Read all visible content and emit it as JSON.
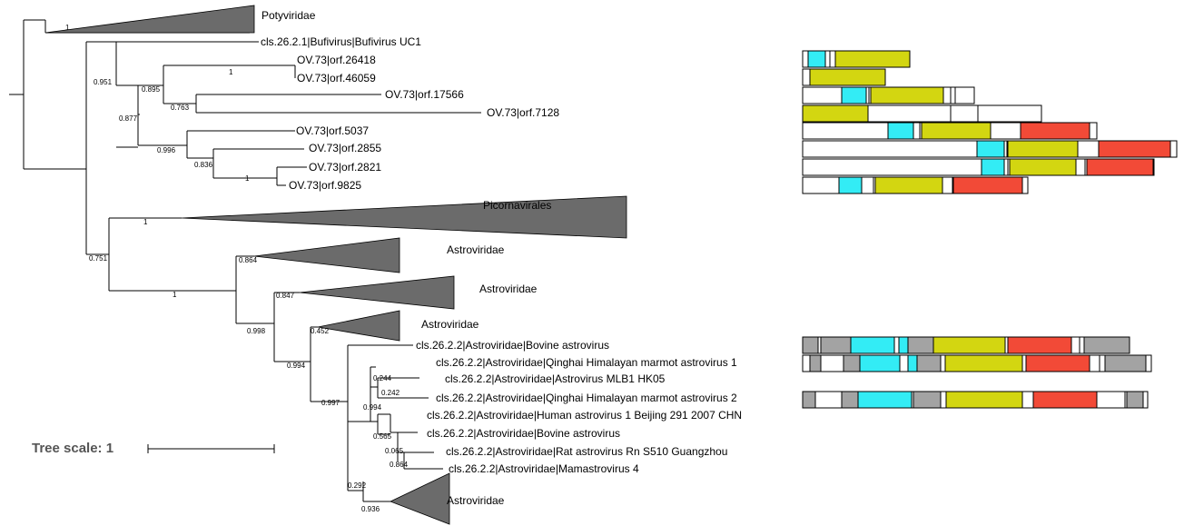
{
  "colors": {
    "clade_fill": "#6b6b6b",
    "domain_cyan": "#33ecf5",
    "domain_olive": "#d3d611",
    "domain_red": "#f24a37",
    "domain_gray": "#a3a3a3",
    "domain_white": "#ffffff"
  },
  "collapsed_clades": [
    {
      "id": "potyviridae",
      "label": "Potyviridae"
    },
    {
      "id": "picornavirales",
      "label": "Picornavirales"
    },
    {
      "id": "astroviridae-1",
      "label": "Astroviridae"
    },
    {
      "id": "astroviridae-2",
      "label": "Astroviridae"
    },
    {
      "id": "astroviridae-3",
      "label": "Astroviridae"
    },
    {
      "id": "astroviridae-4",
      "label": "Astroviridae"
    }
  ],
  "leaves": [
    {
      "id": "bufivirus",
      "label": "cls.26.2.1|Bufivirus|Bufivirus UC1"
    },
    {
      "id": "orf26418",
      "label": "OV.73|orf.26418"
    },
    {
      "id": "orf46059",
      "label": "OV.73|orf.46059"
    },
    {
      "id": "orf17566",
      "label": "OV.73|orf.17566"
    },
    {
      "id": "orf7128",
      "label": "OV.73|orf.7128"
    },
    {
      "id": "orf5037",
      "label": "OV.73|orf.5037"
    },
    {
      "id": "orf2855",
      "label": "OV.73|orf.2855"
    },
    {
      "id": "orf2821",
      "label": "OV.73|orf.2821"
    },
    {
      "id": "orf9825",
      "label": "OV.73|orf.9825"
    },
    {
      "id": "bovine-astro-1",
      "label": "cls.26.2.2|Astroviridae|Bovine astrovirus"
    },
    {
      "id": "qinghai-1",
      "label": "cls.26.2.2|Astroviridae|Qinghai Himalayan marmot astrovirus 1"
    },
    {
      "id": "mlb1",
      "label": "cls.26.2.2|Astroviridae|Astrovirus MLB1 HK05"
    },
    {
      "id": "qinghai-2",
      "label": "cls.26.2.2|Astroviridae|Qinghai Himalayan marmot astrovirus 2"
    },
    {
      "id": "human-astro-1",
      "label": "cls.26.2.2|Astroviridae|Human astrovirus 1 Beijing 291 2007 CHN"
    },
    {
      "id": "bovine-astro-2",
      "label": "cls.26.2.2|Astroviridae|Bovine astrovirus"
    },
    {
      "id": "rat-astro",
      "label": "cls.26.2.2|Astroviridae|Rat astrovirus Rn S510 Guangzhou"
    },
    {
      "id": "mamastro-4",
      "label": "cls.26.2.2|Astroviridae|Mamastrovirus 4"
    }
  ],
  "support_values": [
    {
      "id": "s-poty",
      "value": "1"
    },
    {
      "id": "s-root-a",
      "value": "0.951"
    },
    {
      "id": "s-root-b",
      "value": "0.751"
    },
    {
      "id": "s-orf-a",
      "value": "0.877"
    },
    {
      "id": "s-orf-b",
      "value": "0.895"
    },
    {
      "id": "s-orf-c",
      "value": "1"
    },
    {
      "id": "s-orf-d",
      "value": "0.763"
    },
    {
      "id": "s-orf-e",
      "value": "0.996"
    },
    {
      "id": "s-orf-f",
      "value": "0.836"
    },
    {
      "id": "s-orf-g",
      "value": "1"
    },
    {
      "id": "s-picorna",
      "value": "1"
    },
    {
      "id": "s-astro-main",
      "value": "1"
    },
    {
      "id": "s-astro1",
      "value": "0.864"
    },
    {
      "id": "s-998",
      "value": "0.998"
    },
    {
      "id": "s-astro2",
      "value": "0.847"
    },
    {
      "id": "s-994",
      "value": "0.994"
    },
    {
      "id": "s-astro3",
      "value": "0.452"
    },
    {
      "id": "s-997",
      "value": "0.997"
    },
    {
      "id": "s-292",
      "value": "0.292"
    },
    {
      "id": "s-936",
      "value": "0.936"
    },
    {
      "id": "s-994b",
      "value": "0.994"
    },
    {
      "id": "s-244",
      "value": "0.244"
    },
    {
      "id": "s-242",
      "value": "0.242"
    },
    {
      "id": "s-565",
      "value": "0.565"
    },
    {
      "id": "s-065",
      "value": "0.065"
    },
    {
      "id": "s-864b",
      "value": "0.864"
    }
  ],
  "scale": {
    "label": "Tree scale: 1"
  },
  "domain_tracks": [
    {
      "id": "orf26418",
      "length": 118,
      "segments": [
        [
          "white",
          0,
          6
        ],
        [
          "cyan",
          6,
          25
        ],
        [
          "white",
          25,
          30
        ],
        [
          "olive",
          36,
          118
        ]
      ]
    },
    {
      "id": "orf46059",
      "length": 91,
      "segments": [
        [
          "white",
          0,
          8
        ],
        [
          "olive",
          8,
          91
        ]
      ]
    },
    {
      "id": "orf17566",
      "length": 189,
      "segments": [
        [
          "white",
          0,
          43
        ],
        [
          "cyan",
          43,
          70
        ],
        [
          "white",
          70,
          73
        ],
        [
          "olive",
          75,
          155
        ],
        [
          "white",
          163,
          168
        ]
      ]
    },
    {
      "id": "orf7128",
      "length": 263,
      "segments": [
        [
          "olive",
          0,
          72
        ],
        [
          "white",
          72,
          163
        ],
        [
          "white",
          163,
          193
        ]
      ]
    },
    {
      "id": "orf5037",
      "length": 324,
      "segments": [
        [
          "white",
          0,
          94
        ],
        [
          "cyan",
          94,
          122
        ],
        [
          "white",
          122,
          129
        ],
        [
          "olive",
          131,
          207
        ],
        [
          "white",
          207,
          240
        ],
        [
          "red",
          240,
          316
        ],
        [
          "white",
          316,
          324
        ]
      ]
    },
    {
      "id": "orf2855",
      "length": 412,
      "segments": [
        [
          "white",
          0,
          192
        ],
        [
          "cyan",
          192,
          222
        ],
        [
          "white",
          222,
          225
        ],
        [
          "olive",
          226,
          303
        ],
        [
          "white",
          303,
          326
        ],
        [
          "red",
          326,
          405
        ],
        [
          "white",
          405,
          412
        ]
      ]
    },
    {
      "id": "orf2821",
      "length": 387,
      "segments": [
        [
          "white",
          0,
          197
        ],
        [
          "cyan",
          197,
          222
        ],
        [
          "white",
          222,
          226
        ],
        [
          "olive",
          228,
          301
        ],
        [
          "white",
          301,
          311
        ],
        [
          "red",
          313,
          386
        ]
      ]
    },
    {
      "id": "orf9825",
      "length": 248,
      "segments": [
        [
          "white",
          0,
          40
        ],
        [
          "cyan",
          40,
          65
        ],
        [
          "white",
          65,
          78
        ],
        [
          "olive",
          80,
          154
        ],
        [
          "white",
          154,
          165
        ],
        [
          "red",
          166,
          242
        ],
        [
          "white",
          242,
          248
        ]
      ]
    },
    {
      "id": "bovine-astro-1",
      "length": 360,
      "segments": [
        [
          "gray",
          0,
          17
        ],
        [
          "white",
          17,
          20
        ],
        [
          "gray",
          20,
          53
        ],
        [
          "cyan",
          53,
          101
        ],
        [
          "white",
          101,
          106
        ],
        [
          "cyan",
          106,
          116
        ],
        [
          "gray",
          116,
          144
        ],
        [
          "olive",
          144,
          223
        ],
        [
          "white",
          223,
          226
        ],
        [
          "red",
          226,
          296
        ],
        [
          "white",
          296,
          305
        ],
        [
          "gray",
          310,
          360
        ]
      ]
    },
    {
      "id": "qinghai-1",
      "length": 384,
      "segments": [
        [
          "white",
          0,
          8
        ],
        [
          "gray",
          8,
          20
        ],
        [
          "white",
          20,
          45
        ],
        [
          "gray",
          45,
          63
        ],
        [
          "cyan",
          63,
          107
        ],
        [
          "white",
          107,
          116
        ],
        [
          "cyan",
          116,
          126
        ],
        [
          "gray",
          126,
          152
        ],
        [
          "white",
          152,
          157
        ],
        [
          "olive",
          157,
          242
        ],
        [
          "white",
          242,
          246
        ],
        [
          "red",
          246,
          316
        ],
        [
          "white",
          316,
          327
        ],
        [
          "gray",
          333,
          378
        ],
        [
          "white",
          378,
          384
        ]
      ]
    },
    {
      "id": "qinghai-2",
      "length": 380,
      "segments": [
        [
          "gray",
          0,
          14
        ],
        [
          "white",
          14,
          43
        ],
        [
          "gray",
          43,
          61
        ],
        [
          "cyan",
          61,
          120
        ],
        [
          "gray",
          122,
          152
        ],
        [
          "white",
          152,
          158
        ],
        [
          "olive",
          158,
          242
        ],
        [
          "white",
          242,
          254
        ],
        [
          "red",
          254,
          324
        ],
        [
          "white",
          324,
          355
        ],
        [
          "gray",
          357,
          375
        ],
        [
          "white",
          375,
          380
        ]
      ]
    }
  ]
}
